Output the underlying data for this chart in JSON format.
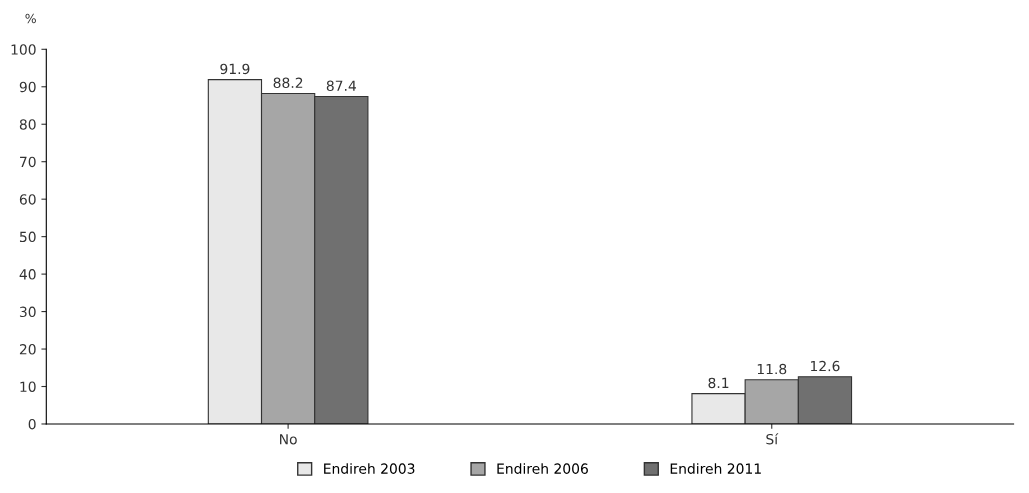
{
  "chart_data": {
    "type": "bar",
    "ylabel": "%",
    "categories": [
      "No",
      "Sí"
    ],
    "series": [
      {
        "name": "Endireh 2003",
        "color": "#e8e8e8",
        "values": [
          91.9,
          8.1
        ]
      },
      {
        "name": "Endireh 2006",
        "color": "#a6a6a6",
        "values": [
          88.2,
          11.8
        ]
      },
      {
        "name": "Endireh 2011",
        "color": "#707070",
        "values": [
          87.4,
          12.6
        ]
      }
    ],
    "ylim": [
      0,
      100
    ],
    "yticks": [
      0,
      10,
      20,
      30,
      40,
      50,
      60,
      70,
      80,
      90,
      100
    ],
    "data_labels": true,
    "legend": "bottom",
    "grid": false
  }
}
